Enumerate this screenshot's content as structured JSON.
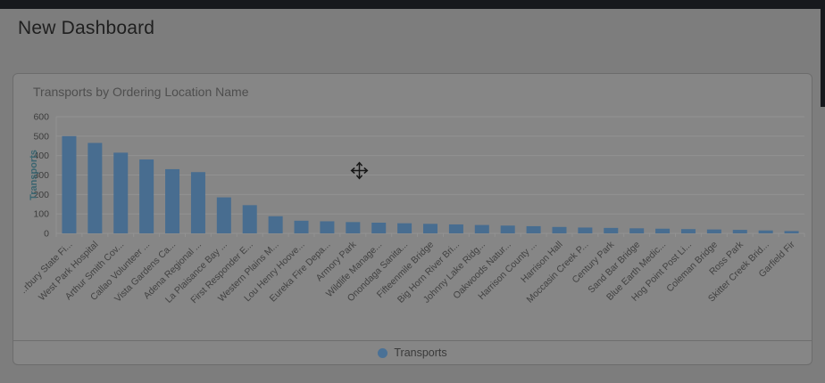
{
  "page": {
    "title": "New Dashboard"
  },
  "widget": {
    "title": "Transports by Ordering Location Name",
    "legend": {
      "label": "Transports",
      "marker_color": "#4a7196"
    }
  },
  "colors": {
    "topbar": "#17191d",
    "page_background": "#7d7d7d",
    "card_background": "#868686",
    "bar": "#486d90",
    "grid_line": "#929292",
    "tick_text": "#3d3d3d",
    "x_label_text": "#424242",
    "y_axis_title": "#3b6570"
  },
  "chart_data": {
    "type": "bar",
    "title": "Transports by Ordering Location Name",
    "xlabel": "",
    "ylabel": "Transports",
    "ylim": [
      0,
      600
    ],
    "yticks": [
      0,
      100,
      200,
      300,
      400,
      500,
      600
    ],
    "grid": true,
    "legend_position": "bottom",
    "series_name": "Transports",
    "bar_color": "#486d90",
    "categories": [
      "..rbury State Fi...",
      "West Park Hospital",
      "Arthur Smith Cov...",
      "Callao Volunteer ...",
      "Vista Gardens Ca...",
      "Adena Regional ...",
      "La Plaisance Bay ...",
      "First Responder E...",
      "Western Plains M...",
      "Lou Henry Hoove...",
      "Eureka Fire Depa...",
      "Armory Park",
      "Wildlife Manage...",
      "Onondaga Sanita...",
      "Fifteenmile Bridge",
      "Big Horn River Bri...",
      "Johnny Lake Ridg...",
      "Oakwoods Natur...",
      "Harrison County ...",
      "Harrison Hall",
      "Moccasin Creek P...",
      "Century Park",
      "Sand Bar Bridge",
      "Blue Earth Medic...",
      "Hog Point Post Li...",
      "Coleman Bridge",
      "Ross Park",
      "Skitter Creek Brid...",
      "Garfield Fir"
    ],
    "values": [
      500,
      465,
      415,
      380,
      330,
      315,
      185,
      145,
      88,
      65,
      62,
      58,
      55,
      52,
      49,
      46,
      43,
      40,
      37,
      33,
      30,
      28,
      26,
      24,
      22,
      20,
      18,
      15,
      12
    ]
  }
}
